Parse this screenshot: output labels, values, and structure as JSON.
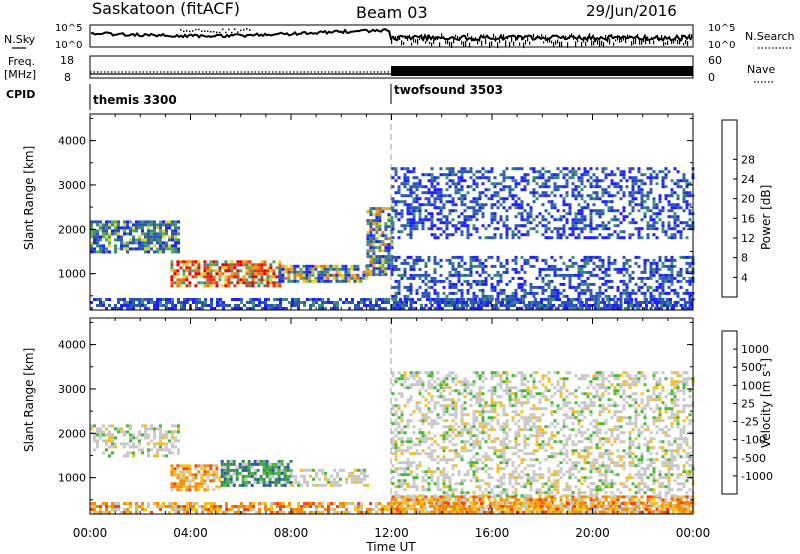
{
  "header": {
    "station": "Saskatoon (fitACF)",
    "beam": "Beam 03",
    "date": "29/Jun/2016"
  },
  "summary": {
    "nsky_label": "N.Sky",
    "nsky_ticks": [
      "10^5",
      "10^0"
    ],
    "nsky_right_ticks": [
      "10^5",
      "10^0"
    ],
    "nsearch_label": "N.Search",
    "freq_label": "Freq.",
    "freq_unit": "[MHz]",
    "freq_ticks": [
      "18",
      "8"
    ],
    "nave_ticks": [
      "60",
      "0"
    ],
    "nave_label": "Nave",
    "cpid_label": "CPID"
  },
  "cpid": [
    {
      "name": "themis 3300",
      "start": 0,
      "end": 12
    },
    {
      "name": "twofsound 3503",
      "start": 12,
      "end": 24
    }
  ],
  "x_axis": {
    "label": "Time UT",
    "ticks": [
      "00:00",
      "04:00",
      "08:00",
      "12:00",
      "16:00",
      "20:00",
      "00:00"
    ]
  },
  "chart_data": [
    {
      "type": "heatmap",
      "name": "power",
      "xlabel": "Time UT",
      "ylabel": "Slant Range [km]",
      "xlim": [
        0,
        24
      ],
      "ylim": [
        180,
        4600
      ],
      "yticks": [
        "1000",
        "2000",
        "3000",
        "4000"
      ],
      "colorbar": {
        "label": "Power [dB]",
        "ticks": [
          "4",
          "8",
          "12",
          "16",
          "20",
          "24",
          "28"
        ],
        "colors": [
          "#2020ff",
          "#2e58b0",
          "#3c8c78",
          "#5fa860",
          "#d8d830",
          "#f5a020",
          "#f07010",
          "#f03010",
          "#e80000"
        ]
      },
      "features": [
        {
          "t0": 0.0,
          "t1": 3.5,
          "r0": 1500,
          "r1": 2200,
          "level": "low-mid"
        },
        {
          "t0": 3.2,
          "t1": 7.5,
          "r0": 700,
          "r1": 1300,
          "level": "high",
          "peak_db": 28
        },
        {
          "t0": 7.5,
          "t1": 11.0,
          "r0": 800,
          "r1": 1200,
          "level": "mid"
        },
        {
          "t0": 11.0,
          "t1": 12.0,
          "r0": 1000,
          "r1": 2500,
          "level": "mid"
        },
        {
          "t0": 12.0,
          "t1": 24.0,
          "r0": 200,
          "r1": 1400,
          "level": "low"
        },
        {
          "t0": 12.0,
          "t1": 24.0,
          "r0": 1800,
          "r1": 3400,
          "level": "low"
        }
      ]
    },
    {
      "type": "heatmap",
      "name": "velocity",
      "xlabel": "Time UT",
      "ylabel": "Slant Range [km]",
      "xlim": [
        0,
        24
      ],
      "ylim": [
        180,
        4600
      ],
      "yticks": [
        "1000",
        "2000",
        "3000",
        "4000"
      ],
      "colorbar": {
        "label": "Velocity [m s^-1]",
        "ticks": [
          "1000",
          "500",
          "100",
          "25",
          "-25",
          "-100",
          "-500",
          "-1000"
        ],
        "colors": [
          "#1a2a9a",
          "#2c54ac",
          "#3a8a58",
          "#48b83a",
          "#c8c8c8",
          "#f0c020",
          "#f08a10",
          "#f04a10",
          "#e00000"
        ]
      },
      "features": [
        {
          "t0": 0.0,
          "t1": 3.5,
          "r0": 1500,
          "r1": 2200,
          "level": "near-zero"
        },
        {
          "t0": 3.2,
          "t1": 5.2,
          "r0": 700,
          "r1": 1300,
          "level": "negative",
          "v": -500
        },
        {
          "t0": 5.2,
          "t1": 8.0,
          "r0": 800,
          "r1": 1400,
          "level": "positive",
          "v": 100
        },
        {
          "t0": 8.0,
          "t1": 11.0,
          "r0": 800,
          "r1": 1200,
          "level": "near-zero"
        },
        {
          "t0": 12.0,
          "t1": 24.0,
          "r0": 200,
          "r1": 600,
          "level": "negative",
          "v": -100
        },
        {
          "t0": 12.0,
          "t1": 24.0,
          "r0": 600,
          "r1": 3400,
          "level": "near-zero"
        }
      ]
    }
  ],
  "colors": {
    "ground_scatter": "#c8c8c8",
    "axis": "#000000",
    "cpid_divider": "#000000"
  }
}
